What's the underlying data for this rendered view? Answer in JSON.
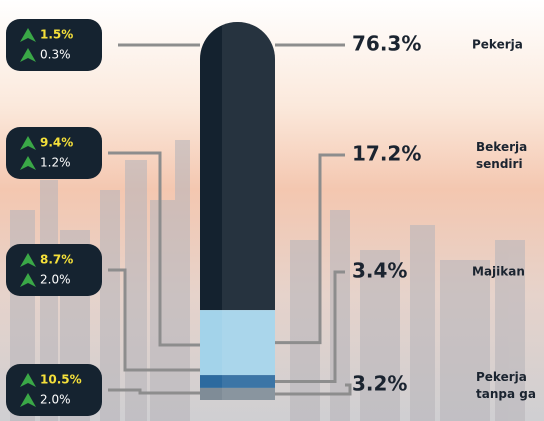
{
  "chart_data": {
    "type": "tube",
    "categories": [
      "Pekerja",
      "Bekerja sendiri",
      "Majikan",
      "Pekerja tanpa ga"
    ],
    "values": [
      76.3,
      17.2,
      3.4,
      3.2
    ],
    "value_labels": [
      "76.3%",
      "17.2%",
      "3.4%",
      "3.2%"
    ],
    "colors": [
      "#14222f",
      "#a3d3ea",
      "#2c6a9f",
      "#7f8c97"
    ],
    "badges": [
      {
        "top": "1.5%",
        "bottom": "0.3%"
      },
      {
        "top": "9.4%",
        "bottom": "1.2%"
      },
      {
        "top": "8.7%",
        "bottom": "2.0%"
      },
      {
        "top": "10.5%",
        "bottom": "2.0%"
      }
    ]
  }
}
